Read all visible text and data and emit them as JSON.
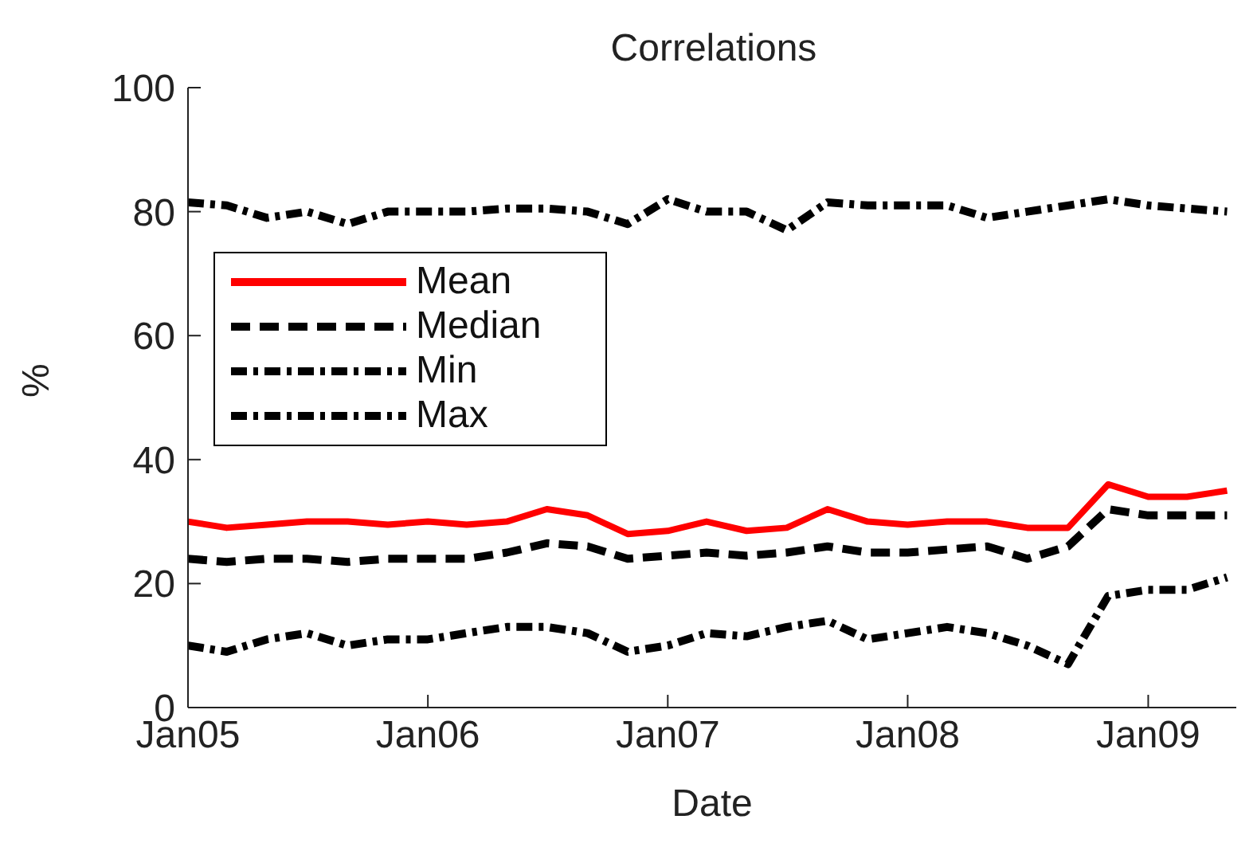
{
  "chart_data": {
    "type": "line",
    "title": "Correlations",
    "xlabel": "Date",
    "ylabel": "%",
    "x": [
      "2005-01",
      "2005-03",
      "2005-05",
      "2005-07",
      "2005-09",
      "2005-11",
      "2006-01",
      "2006-03",
      "2006-05",
      "2006-07",
      "2006-09",
      "2006-11",
      "2007-01",
      "2007-03",
      "2007-05",
      "2007-07",
      "2007-09",
      "2007-11",
      "2008-01",
      "2008-03",
      "2008-05",
      "2008-07",
      "2008-09",
      "2008-11",
      "2009-01",
      "2009-03",
      "2009-05"
    ],
    "series": [
      {
        "name": "Mean",
        "color": "#ff0000",
        "line_style": "solid",
        "values": [
          30,
          29,
          29.5,
          30,
          30,
          29.5,
          30,
          29.5,
          30,
          32,
          31,
          28,
          28.5,
          30,
          28.5,
          29,
          32,
          30,
          29.5,
          30,
          30,
          29,
          29,
          36,
          34,
          34,
          35
        ]
      },
      {
        "name": "Median",
        "color": "#000000",
        "line_style": "dashed",
        "values": [
          24,
          23.5,
          24,
          24,
          23.5,
          24,
          24,
          24,
          25,
          26.5,
          26,
          24,
          24.5,
          25,
          24.5,
          25,
          26,
          25,
          25,
          25.5,
          26,
          24,
          26,
          32,
          31,
          31,
          31
        ]
      },
      {
        "name": "Min",
        "color": "#000000",
        "line_style": "dashdot",
        "values": [
          10,
          9,
          11,
          12,
          10,
          11,
          11,
          12,
          13,
          13,
          12,
          9,
          10,
          12,
          11.5,
          13,
          14,
          11,
          12,
          13,
          12,
          10,
          7,
          18,
          19,
          19,
          21
        ]
      },
      {
        "name": "Max",
        "color": "#000000",
        "line_style": "dashdot",
        "values": [
          81.5,
          81,
          79,
          80,
          78,
          80,
          80,
          80,
          80.5,
          80.5,
          80,
          78,
          82,
          80,
          80,
          77,
          81.5,
          81,
          81,
          81,
          79,
          80,
          81,
          82,
          81,
          80.5,
          80
        ]
      }
    ],
    "xlim": [
      "2005-01",
      "2009-05-15"
    ],
    "xticks": [
      {
        "value": "2005-01",
        "label": "Jan05"
      },
      {
        "value": "2006-01",
        "label": "Jan06"
      },
      {
        "value": "2007-01",
        "label": "Jan07"
      },
      {
        "value": "2008-01",
        "label": "Jan08"
      },
      {
        "value": "2009-01",
        "label": "Jan09"
      }
    ],
    "ylim": [
      0,
      100
    ],
    "yticks": [
      0,
      20,
      40,
      60,
      80,
      100
    ],
    "grid": false,
    "legend": "top left",
    "marker": "none"
  }
}
